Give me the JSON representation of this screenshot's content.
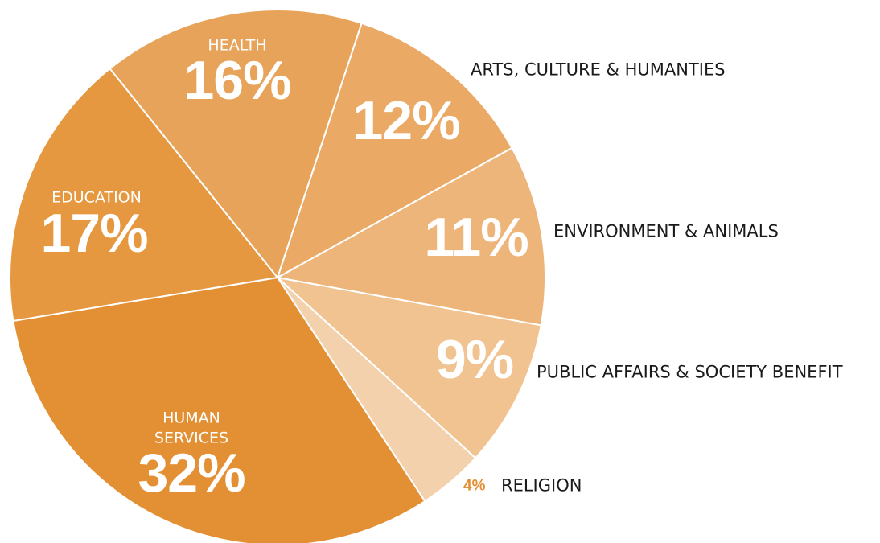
{
  "chart_data": {
    "type": "pie",
    "categories": [
      "ARTS, CULTURE & HUMANTIES",
      "ENVIRONMENT & ANIMALS",
      "PUBLIC AFFAIRS & SOCIETY BENEFIT",
      "RELIGION",
      "HUMAN SERVICES",
      "EDUCATION",
      "HEALTH"
    ],
    "values": [
      12,
      11,
      9,
      4,
      32,
      17,
      16
    ],
    "value_labels": [
      "12%",
      "11%",
      "9%",
      "4%",
      "32%",
      "17%",
      "16%"
    ],
    "colors": [
      "#eaa965",
      "#edb57a",
      "#f0c391",
      "#f3d1ac",
      "#e39035",
      "#e5983f",
      "#e8a35a"
    ]
  }
}
